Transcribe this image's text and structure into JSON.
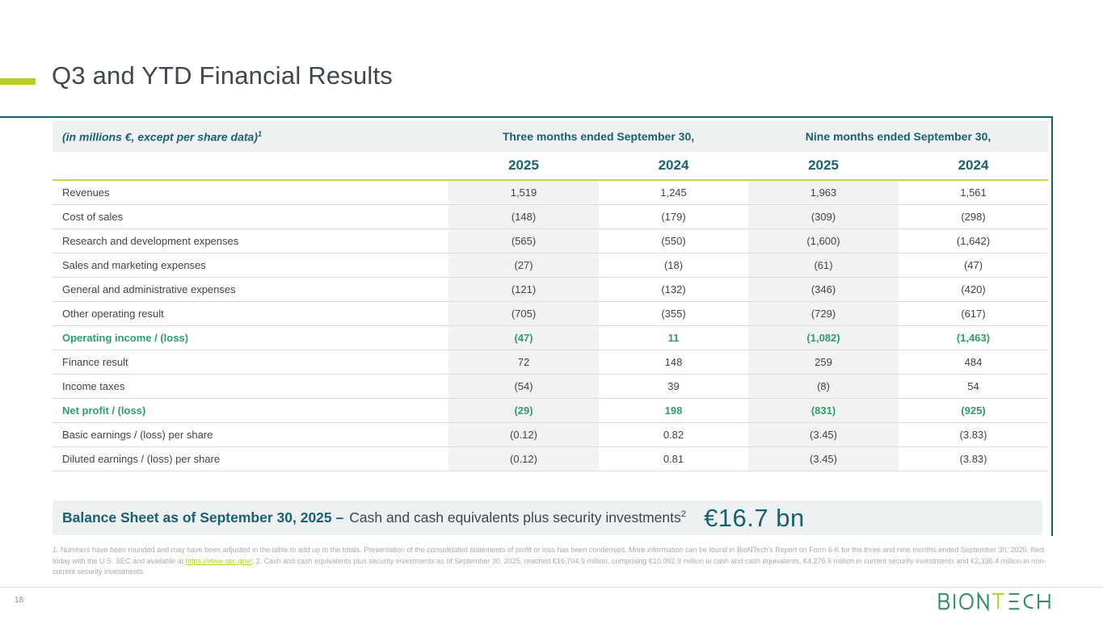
{
  "slide": {
    "title": "Q3 and YTD Financial Results",
    "page_number": "18",
    "logo_alt": "BIONTECH"
  },
  "colors": {
    "teal": "#1a616e",
    "green": "#2f9e68",
    "lime": "#b9cc1c"
  },
  "table": {
    "unit_label": "(in millions €, except per share data)",
    "unit_label_sup": "1",
    "col_groups": [
      "Three months ended September 30,",
      "Nine months ended September 30,"
    ],
    "years": [
      "2025",
      "2024",
      "2025",
      "2024"
    ],
    "rows": [
      {
        "label": "Revenues",
        "values": [
          "1,519",
          "1,245",
          "1,963",
          "1,561"
        ],
        "highlight": false
      },
      {
        "label": "Cost of sales",
        "values": [
          "(148)",
          "(179)",
          "(309)",
          "(298)"
        ],
        "highlight": false
      },
      {
        "label": "Research and development expenses",
        "values": [
          "(565)",
          "(550)",
          "(1,600)",
          "(1,642)"
        ],
        "highlight": false
      },
      {
        "label": "Sales and marketing expenses",
        "values": [
          "(27)",
          "(18)",
          "(61)",
          "(47)"
        ],
        "highlight": false
      },
      {
        "label": "General and administrative expenses",
        "values": [
          "(121)",
          "(132)",
          "(346)",
          "(420)"
        ],
        "highlight": false
      },
      {
        "label": "Other operating result",
        "values": [
          "(705)",
          "(355)",
          "(729)",
          "(617)"
        ],
        "highlight": false
      },
      {
        "label": "Operating income / (loss)",
        "values": [
          "(47)",
          "11",
          "(1,082)",
          "(1,463)"
        ],
        "highlight": true
      },
      {
        "label": "Finance result",
        "values": [
          "72",
          "148",
          "259",
          "484"
        ],
        "highlight": false
      },
      {
        "label": "Income taxes",
        "values": [
          "(54)",
          "39",
          "(8)",
          "54"
        ],
        "highlight": false
      },
      {
        "label": "Net profit / (loss)",
        "values": [
          "(29)",
          "198",
          "(831)",
          "(925)"
        ],
        "highlight": true
      },
      {
        "label": "Basic earnings / (loss) per share",
        "values": [
          "(0.12)",
          "0.82",
          "(3.45)",
          "(3.83)"
        ],
        "highlight": false
      },
      {
        "label": "Diluted earnings / (loss) per share",
        "values": [
          "(0.12)",
          "0.81",
          "(3.45)",
          "(3.83)"
        ],
        "highlight": false
      }
    ]
  },
  "balance": {
    "title": "Balance Sheet as of September 30, 2025 –",
    "text": "Cash and cash equivalents plus security investments",
    "sup": "2",
    "value": "€16.7 bn"
  },
  "footnotes": {
    "part1": "1. Numbers have been rounded and may have been adjusted in the table to add up to the totals. Presentation of the consolidated statements of profit or loss has been condensed. More information can be found in BioNTech's Report on Form 6-K for the three and nine months ended September 30, 2025, filed today with the U.S. SEC and available at ",
    "link": "https://www.sec.gov/",
    "part2": "; 2. Cash and cash equivalents plus security investments as of September 30, 2025, reached €16,704.9 million, comprising €10,092.9 million in cash and cash equivalents, €4,275.6 million in current security investments and €2,336.4 million in non-current security investments."
  }
}
